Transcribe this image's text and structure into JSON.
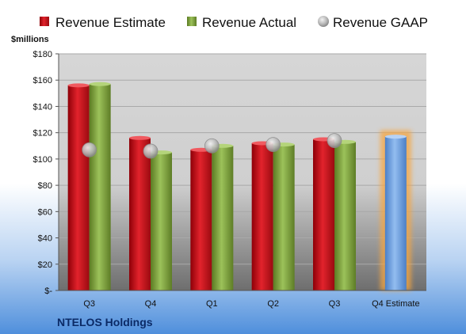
{
  "chart_data": {
    "type": "bar",
    "unit_label": "$millions",
    "categories": [
      "Q3",
      "Q4",
      "Q1",
      "Q2",
      "Q3",
      "Q4 Estimate"
    ],
    "y_ticks": [
      "$-",
      "$20",
      "$40",
      "$60",
      "$80",
      "$100",
      "$120",
      "$140",
      "$160",
      "$180"
    ],
    "ylim": [
      0,
      180
    ],
    "grid": true,
    "legend_position": "top",
    "series": [
      {
        "name": "Revenue Estimate",
        "kind": "bar",
        "color": "#d0121b",
        "values": [
          156,
          116,
          107,
          112,
          115,
          null
        ]
      },
      {
        "name": "Revenue Actual",
        "kind": "bar",
        "color": "#7fa23d",
        "values": [
          157,
          105,
          110,
          111,
          113,
          null
        ]
      },
      {
        "name": "Revenue GAAP",
        "kind": "marker",
        "color": "#b8b8b8",
        "values": [
          107,
          106,
          110,
          111,
          114,
          null
        ]
      },
      {
        "name": "",
        "kind": "bar",
        "color": "#6f9fdd",
        "values": [
          null,
          null,
          null,
          null,
          null,
          117
        ]
      }
    ],
    "highlight_last": true,
    "company": "NTELOS Holdings"
  }
}
